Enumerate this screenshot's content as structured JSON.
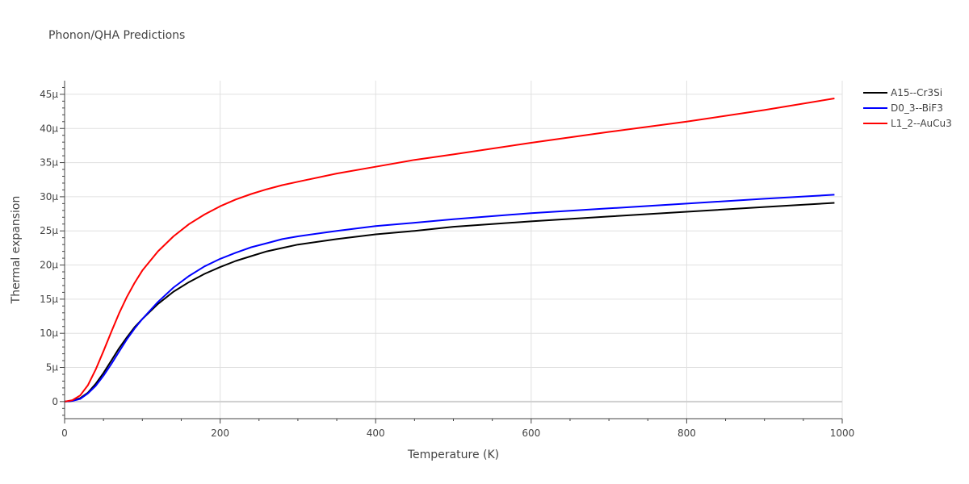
{
  "chart_data": {
    "type": "line",
    "title": "Phonon/QHA Predictions",
    "xlabel": "Temperature (K)",
    "ylabel": "Thermal expansion",
    "xlim": [
      0,
      1000
    ],
    "ylim": [
      -2.5e-06,
      4.7e-05
    ],
    "x_ticks": [
      0,
      200,
      400,
      600,
      800,
      1000
    ],
    "x_tick_labels": [
      "0",
      "200",
      "400",
      "600",
      "800",
      "1000"
    ],
    "y_ticks": [
      0,
      5e-06,
      1e-05,
      1.5e-05,
      2e-05,
      2.5e-05,
      3e-05,
      3.5e-05,
      4e-05,
      4.5e-05
    ],
    "y_tick_labels": [
      "0",
      "5μ",
      "10μ",
      "15μ",
      "20μ",
      "25μ",
      "30μ",
      "35μ",
      "40μ",
      "45μ"
    ],
    "grid": true,
    "legend_position": "top-right",
    "series": [
      {
        "name": "A15--Cr3Si",
        "color": "#000000",
        "x": [
          0,
          10,
          20,
          30,
          40,
          50,
          60,
          70,
          80,
          90,
          100,
          120,
          140,
          160,
          180,
          200,
          220,
          240,
          260,
          280,
          300,
          350,
          400,
          450,
          500,
          600,
          700,
          800,
          900,
          990
        ],
        "y": [
          0,
          1e-07,
          5e-07,
          1.3e-06,
          2.6e-06,
          4.2e-06,
          6e-06,
          7.8e-06,
          9.4e-06,
          1.09e-05,
          1.21e-05,
          1.43e-05,
          1.61e-05,
          1.75e-05,
          1.87e-05,
          1.97e-05,
          2.06e-05,
          2.13e-05,
          2.2e-05,
          2.25e-05,
          2.3e-05,
          2.38e-05,
          2.45e-05,
          2.5e-05,
          2.56e-05,
          2.64e-05,
          2.71e-05,
          2.78e-05,
          2.85e-05,
          2.91e-05
        ]
      },
      {
        "name": "D0_3--BiF3",
        "color": "#0000ff",
        "x": [
          0,
          10,
          20,
          30,
          40,
          50,
          60,
          70,
          80,
          90,
          100,
          120,
          140,
          160,
          180,
          200,
          220,
          240,
          260,
          280,
          300,
          350,
          400,
          450,
          500,
          600,
          700,
          800,
          900,
          990
        ],
        "y": [
          0,
          1e-07,
          4e-07,
          1.2e-06,
          2.3e-06,
          3.8e-06,
          5.5e-06,
          7.3e-06,
          9.1e-06,
          1.07e-05,
          1.21e-05,
          1.46e-05,
          1.67e-05,
          1.84e-05,
          1.98e-05,
          2.09e-05,
          2.18e-05,
          2.26e-05,
          2.32e-05,
          2.38e-05,
          2.42e-05,
          2.5e-05,
          2.57e-05,
          2.62e-05,
          2.67e-05,
          2.76e-05,
          2.83e-05,
          2.9e-05,
          2.97e-05,
          3.03e-05
        ]
      },
      {
        "name": "L1_2--AuCu3",
        "color": "#ff0000",
        "x": [
          0,
          10,
          20,
          30,
          40,
          50,
          60,
          70,
          80,
          90,
          100,
          120,
          140,
          160,
          180,
          200,
          220,
          240,
          260,
          280,
          300,
          350,
          400,
          450,
          500,
          600,
          700,
          800,
          900,
          990
        ],
        "y": [
          0,
          2e-07,
          9e-07,
          2.4e-06,
          4.7e-06,
          7.4e-06,
          1.02e-05,
          1.29e-05,
          1.53e-05,
          1.74e-05,
          1.92e-05,
          2.2e-05,
          2.42e-05,
          2.6e-05,
          2.74e-05,
          2.86e-05,
          2.96e-05,
          3.04e-05,
          3.11e-05,
          3.17e-05,
          3.22e-05,
          3.34e-05,
          3.44e-05,
          3.54e-05,
          3.62e-05,
          3.79e-05,
          3.95e-05,
          4.1e-05,
          4.27e-05,
          4.44e-05
        ]
      }
    ]
  }
}
